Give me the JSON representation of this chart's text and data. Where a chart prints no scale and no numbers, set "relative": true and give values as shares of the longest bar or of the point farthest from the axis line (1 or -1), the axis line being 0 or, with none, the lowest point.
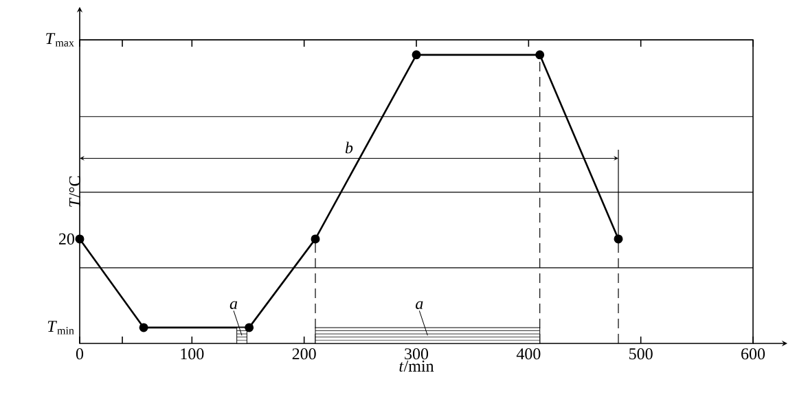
{
  "chart_data": {
    "type": "line",
    "xlabel": "*t*/min",
    "ylabel": "*T*/°C",
    "relative": true,
    "xlim": [
      0,
      600
    ],
    "xticks": [
      0,
      {
        "value": 38,
        "label": null
      },
      100,
      200,
      300,
      400,
      500,
      600
    ],
    "line_style": "solid",
    "series": [
      {
        "color": "#000000",
        "marker": "circle",
        "x": [
          0,
          57,
          151,
          210,
          300,
          410,
          480
        ],
        "values": [
          0.362,
          0.055,
          0.055,
          0.362,
          1,
          1,
          0.362
        ]
      },
      {
        "type": "line",
        "line_style": "dashed",
        "marker": "none",
        "color": "#000000",
        "x": [
          210,
          210
        ],
        "values": [
          0,
          0.362
        ]
      },
      {
        "type": "line",
        "line_style": "dashed",
        "marker": "none",
        "color": "#000000",
        "x": [
          410,
          410
        ],
        "values": [
          0,
          1
        ]
      },
      {
        "type": "line",
        "line_style": "dashed",
        "marker": "none",
        "color": "#000000",
        "x": [
          480,
          480
        ],
        "values": [
          0,
          0.362
        ]
      },
      {
        "type": "line",
        "line_style": "solid",
        "marker": "none",
        "color": "#000000",
        "x": [
          480,
          480
        ],
        "values": [
          0.362,
          0.671
        ]
      },
      {
        "type": "area",
        "marker": "none",
        "color": "#000000",
        "x": [
          140,
          149
        ],
        "values": [
          0.055,
          0.055
        ]
      },
      {
        "type": "area",
        "marker": "none",
        "color": "#000000",
        "x": [
          210,
          410
        ],
        "values": [
          0.055,
          0.055
        ]
      }
    ],
    "ref_lines": [
      {
        "axis": "y",
        "value": 0.262
      },
      {
        "axis": "y",
        "value": 0.524
      },
      {
        "axis": "y",
        "value": 0.786
      },
      {
        "axis": "y",
        "value": 1.052,
        "label": "*T*$_{max}$"
      }
    ],
    "annotations": [
      "20",
      "*T*$_{min}$",
      "a",
      "a",
      "b"
    ]
  }
}
